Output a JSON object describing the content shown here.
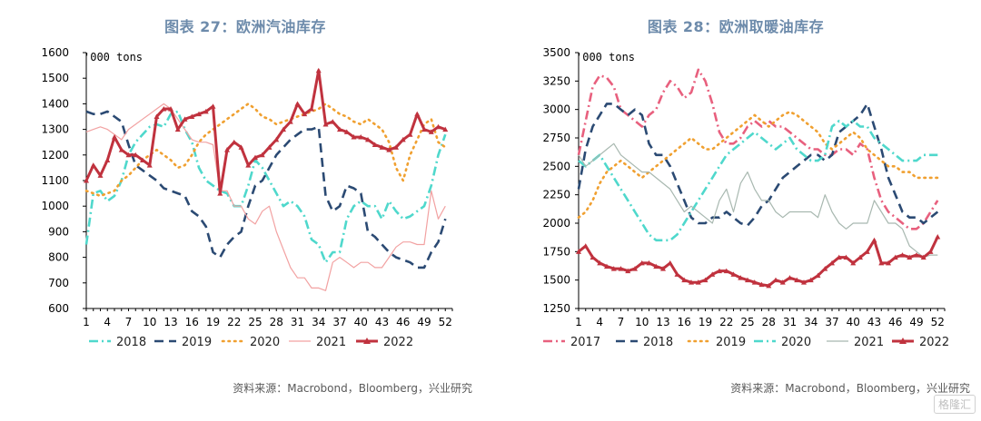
{
  "charts": [
    {
      "title": "图表 27：欧洲汽油库存",
      "source": "资料来源：Macrobond，Bloomberg，兴业研究",
      "unit": "'000 tons",
      "chart_data": {
        "type": "line",
        "title": "图表 27：欧洲汽油库存",
        "ylabel": "'000 tons",
        "ylim": [
          600,
          1600
        ],
        "yticks": [
          600,
          700,
          800,
          900,
          1000,
          1100,
          1200,
          1300,
          1400,
          1500,
          1600
        ],
        "xlim": [
          1,
          53
        ],
        "xticks": [
          1,
          4,
          7,
          10,
          13,
          16,
          19,
          22,
          25,
          28,
          31,
          34,
          37,
          40,
          43,
          46,
          49,
          52
        ],
        "grid": false,
        "legend": "bottom",
        "series": [
          {
            "name": "2018",
            "color": "#4fd8cc",
            "style": "dashdot",
            "values": [
              850,
              1050,
              1060,
              1020,
              1040,
              1100,
              1200,
              1250,
              1280,
              1310,
              1320,
              1310,
              1360,
              1370,
              1300,
              1250,
              1150,
              1100,
              1080,
              1060,
              1050,
              1000,
              1000,
              1080,
              1180,
              1150,
              1100,
              1050,
              1000,
              1020,
              1000,
              960,
              870,
              850,
              780,
              820,
              820,
              950,
              1000,
              1020,
              1000,
              1000,
              950,
              1020,
              980,
              950,
              960,
              980,
              1000,
              1080,
              1200,
              1280
            ]
          },
          {
            "name": "2019",
            "color": "#2b4a73",
            "style": "dash",
            "values": [
              1370,
              1360,
              1360,
              1370,
              1350,
              1330,
              1240,
              1160,
              1140,
              1120,
              1100,
              1070,
              1060,
              1050,
              1040,
              980,
              960,
              920,
              820,
              800,
              850,
              880,
              900,
              1000,
              1080,
              1100,
              1150,
              1200,
              1230,
              1260,
              1280,
              1300,
              1300,
              1310,
              1040,
              980,
              1000,
              1080,
              1070,
              1050,
              900,
              880,
              850,
              820,
              800,
              790,
              780,
              760,
              760,
              820,
              860,
              950
            ]
          },
          {
            "name": "2020",
            "color": "#f0a030",
            "style": "dot",
            "values": [
              1060,
              1050,
              1040,
              1050,
              1060,
              1100,
              1120,
              1150,
              1180,
              1200,
              1220,
              1200,
              1180,
              1150,
              1160,
              1200,
              1250,
              1280,
              1300,
              1320,
              1340,
              1360,
              1380,
              1400,
              1380,
              1350,
              1340,
              1320,
              1330,
              1340,
              1350,
              1360,
              1370,
              1380,
              1400,
              1380,
              1360,
              1350,
              1330,
              1320,
              1340,
              1320,
              1300,
              1250,
              1150,
              1100,
              1200,
              1260,
              1320,
              1340,
              1250,
              1230
            ]
          },
          {
            "name": "2021",
            "color": "#f2a2a2",
            "style": "solid",
            "values": [
              1290,
              1300,
              1310,
              1300,
              1280,
              1260,
              1300,
              1320,
              1340,
              1360,
              1380,
              1400,
              1380,
              1340,
              1300,
              1260,
              1250,
              1250,
              1240,
              1060,
              1060,
              1000,
              1000,
              950,
              930,
              980,
              1000,
              900,
              830,
              760,
              720,
              720,
              680,
              680,
              670,
              780,
              800,
              780,
              760,
              780,
              780,
              760,
              760,
              800,
              840,
              860,
              860,
              850,
              850,
              1060,
              950,
              1000
            ]
          },
          {
            "name": "2022",
            "color": "#c0323e",
            "style": "solid-marker",
            "values": [
              1100,
              1160,
              1120,
              1180,
              1270,
              1220,
              1200,
              1200,
              1180,
              1160,
              1350,
              1380,
              1380,
              1300,
              1340,
              1350,
              1360,
              1370,
              1390,
              1050,
              1220,
              1250,
              1230,
              1160,
              1190,
              1200,
              1230,
              1260,
              1300,
              1330,
              1400,
              1360,
              1380,
              1530,
              1320,
              1330,
              1300,
              1290,
              1270,
              1270,
              1260,
              1240,
              1230,
              1220,
              1230,
              1260,
              1280,
              1360,
              1300,
              1290,
              1310,
              1300
            ]
          }
        ]
      }
    },
    {
      "title": "图表 28：欧洲取暖油库存",
      "source": "资料来源：Macrobond，Bloomberg，兴业研究",
      "unit": "'000 tons",
      "chart_data": {
        "type": "line",
        "title": "图表 28：欧洲取暖油库存",
        "ylabel": "'000 tons",
        "ylim": [
          1250,
          3500
        ],
        "yticks": [
          1250,
          1500,
          1750,
          2000,
          2250,
          2500,
          2750,
          3000,
          3250,
          3500
        ],
        "xlim": [
          1,
          53
        ],
        "xticks": [
          1,
          4,
          7,
          10,
          13,
          16,
          19,
          22,
          25,
          28,
          31,
          34,
          37,
          40,
          43,
          46,
          49,
          52
        ],
        "grid": false,
        "legend": "bottom",
        "series": [
          {
            "name": "2017",
            "color": "#e8607e",
            "style": "dashdot",
            "values": [
              2600,
              2900,
              3200,
              3300,
              3280,
              3200,
              3000,
              2950,
              2900,
              2850,
              2950,
              3000,
              3150,
              3250,
              3200,
              3100,
              3150,
              3350,
              3250,
              3050,
              2800,
              2700,
              2700,
              2750,
              2850,
              2900,
              2850,
              2900,
              2850,
              2850,
              2800,
              2750,
              2700,
              2650,
              2650,
              2600,
              2600,
              2650,
              2650,
              2600,
              2700,
              2650,
              2400,
              2200,
              2100,
              2050,
              2000,
              1950,
              1950,
              2000,
              2100,
              2200
            ]
          },
          {
            "name": "2018",
            "color": "#2b4a73",
            "style": "dash",
            "values": [
              2300,
              2650,
              2850,
              2950,
              3050,
              3050,
              3000,
              2950,
              3000,
              2950,
              2700,
              2600,
              2600,
              2500,
              2350,
              2200,
              2050,
              2000,
              2000,
              2050,
              2050,
              2100,
              2050,
              2000,
              1980,
              2050,
              2150,
              2200,
              2300,
              2400,
              2450,
              2500,
              2550,
              2600,
              2600,
              2550,
              2600,
              2800,
              2850,
              2900,
              2950,
              3050,
              2850,
              2650,
              2400,
              2250,
              2100,
              2050,
              2050,
              2000,
              2050,
              2100
            ]
          },
          {
            "name": "2019",
            "color": "#f0a030",
            "style": "dot",
            "values": [
              2050,
              2100,
              2200,
              2350,
              2450,
              2500,
              2550,
              2500,
              2450,
              2400,
              2450,
              2500,
              2550,
              2600,
              2650,
              2700,
              2750,
              2700,
              2650,
              2650,
              2700,
              2750,
              2800,
              2850,
              2900,
              2950,
              2900,
              2850,
              2900,
              2950,
              2980,
              2950,
              2900,
              2850,
              2800,
              2700,
              2650,
              2700,
              2750,
              2800,
              2750,
              2650,
              2600,
              2550,
              2500,
              2500,
              2450,
              2450,
              2400,
              2400,
              2400,
              2400
            ]
          },
          {
            "name": "2020",
            "color": "#4fd8cc",
            "style": "dashdot",
            "values": [
              2550,
              2500,
              2550,
              2600,
              2500,
              2400,
              2300,
              2200,
              2100,
              2000,
              1900,
              1850,
              1850,
              1850,
              1900,
              2000,
              2100,
              2200,
              2300,
              2400,
              2500,
              2600,
              2650,
              2700,
              2750,
              2800,
              2750,
              2700,
              2650,
              2700,
              2750,
              2650,
              2600,
              2550,
              2550,
              2600,
              2850,
              2900,
              2850,
              2900,
              2850,
              2850,
              2750,
              2700,
              2650,
              2600,
              2550,
              2550,
              2550,
              2600,
              2600,
              2600
            ]
          },
          {
            "name": "2021",
            "color": "#a8b8b0",
            "style": "solid",
            "values": [
              2600,
              2500,
              2550,
              2600,
              2650,
              2700,
              2600,
              2550,
              2500,
              2450,
              2450,
              2400,
              2350,
              2300,
              2200,
              2100,
              2150,
              2100,
              2050,
              2000,
              2200,
              2300,
              2100,
              2350,
              2450,
              2300,
              2200,
              2200,
              2100,
              2050,
              2100,
              2100,
              2100,
              2100,
              2050,
              2250,
              2100,
              2000,
              1950,
              2000,
              2000,
              2000,
              2200,
              2100,
              2000,
              2000,
              1950,
              1800,
              1750,
              1700,
              1720,
              1720
            ]
          },
          {
            "name": "2022",
            "color": "#c0323e",
            "style": "solid-marker",
            "values": [
              1750,
              1800,
              1700,
              1650,
              1620,
              1600,
              1600,
              1580,
              1600,
              1650,
              1650,
              1620,
              1600,
              1650,
              1550,
              1500,
              1480,
              1480,
              1500,
              1550,
              1580,
              1580,
              1550,
              1520,
              1500,
              1480,
              1460,
              1450,
              1500,
              1480,
              1520,
              1500,
              1480,
              1500,
              1540,
              1600,
              1650,
              1700,
              1700,
              1650,
              1700,
              1750,
              1850,
              1650,
              1650,
              1700,
              1720,
              1700,
              1720,
              1700,
              1750,
              1880
            ]
          }
        ]
      }
    }
  ],
  "watermark": "格隆汇"
}
